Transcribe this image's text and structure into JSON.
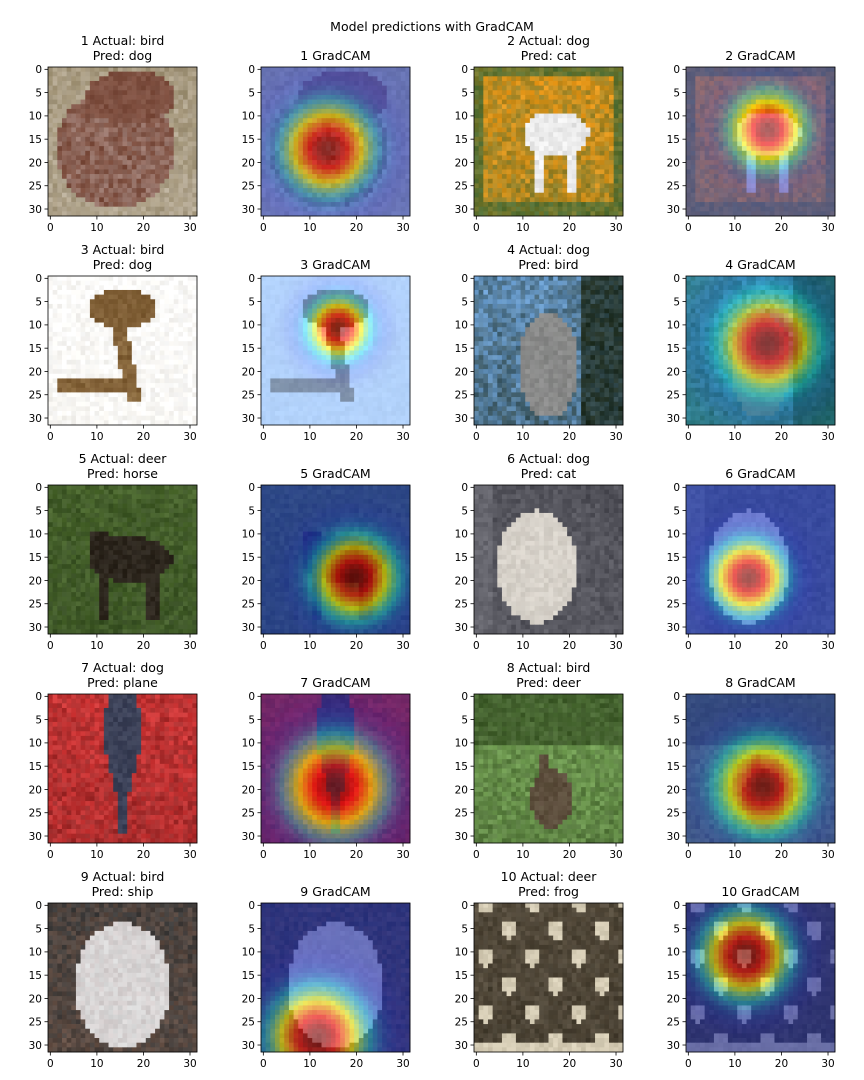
{
  "figure": {
    "title": "Model predictions with GradCAM"
  },
  "chart_data": {
    "type": "image_grid",
    "xlim": [
      0,
      31
    ],
    "ylim": [
      31,
      0
    ],
    "x_ticks": [
      "0",
      "10",
      "20",
      "30"
    ],
    "y_ticks": [
      "0",
      "5",
      "10",
      "15",
      "20",
      "25",
      "30"
    ],
    "samples": [
      {
        "idx": "1",
        "actual": "1 Actual: bird",
        "pred": "Pred: dog",
        "gradcam": "1 GradCAM",
        "image": {
          "bg": "#9a8c6e",
          "bg2": "#c9bfb0",
          "subject": "#7a4a3a",
          "accent": "#e9e9ee",
          "shape": "bird-head"
        },
        "heat": {
          "cx": 0.45,
          "cy": 0.55,
          "spread": 0.42,
          "base": "#3a58d8"
        }
      },
      {
        "idx": "2",
        "actual": "2 Actual: dog",
        "pred": "Pred: cat",
        "gradcam": "2 GradCAM",
        "image": {
          "bg": "#f29b18",
          "bg2": "#4f6d33",
          "subject": "#f2f2f2",
          "accent": "#222222",
          "shape": "framed-dog"
        },
        "heat": {
          "cx": 0.55,
          "cy": 0.42,
          "spread": 0.34,
          "base": "#5a4fb0"
        }
      },
      {
        "idx": "3",
        "actual": "3 Actual: bird",
        "pred": "Pred: dog",
        "gradcam": "3 GradCAM",
        "image": {
          "bg": "#ffffff",
          "bg2": "#f2efe8",
          "subject": "#7b5a32",
          "accent": "#e6c98a",
          "shape": "ostrich"
        },
        "heat": {
          "cx": 0.52,
          "cy": 0.35,
          "spread": 0.28,
          "base": "#7fb7ff"
        }
      },
      {
        "idx": "4",
        "actual": "4 Actual: dog",
        "pred": "Pred: bird",
        "gradcam": "4 GradCAM",
        "image": {
          "bg": "#6fa4d9",
          "bg2": "#1f2d20",
          "subject": "#8c8c8c",
          "accent": "#2f3f2a",
          "shape": "sitting-dog"
        },
        "heat": {
          "cx": 0.55,
          "cy": 0.45,
          "spread": 0.45,
          "base": "#1c8a8a"
        }
      },
      {
        "idx": "5",
        "actual": "5 Actual: deer",
        "pred": "Pred: horse",
        "gradcam": "5 GradCAM",
        "image": {
          "bg": "#4d6a2f",
          "bg2": "#2f4420",
          "subject": "#2a241c",
          "accent": "#6b5a3e",
          "shape": "deer"
        },
        "heat": {
          "cx": 0.63,
          "cy": 0.62,
          "spread": 0.38,
          "base": "#1c36c8"
        }
      },
      {
        "idx": "6",
        "actual": "6 Actual: dog",
        "pred": "Pred: cat",
        "gradcam": "6 GradCAM",
        "image": {
          "bg": "#4a4a52",
          "bg2": "#6a6a72",
          "subject": "#d9d4cc",
          "accent": "#9a8f82",
          "shape": "pug"
        },
        "heat": {
          "cx": 0.42,
          "cy": 0.62,
          "spread": 0.34,
          "base": "#2646d0"
        }
      },
      {
        "idx": "7",
        "actual": "7 Actual: dog",
        "pred": "Pred: plane",
        "gradcam": "7 GradCAM",
        "image": {
          "bg": "#d93a3a",
          "bg2": "#7a2020",
          "subject": "#3a3f55",
          "accent": "#6a7fa8",
          "shape": "topdown"
        },
        "heat": {
          "cx": 0.5,
          "cy": 0.62,
          "spread": 0.46,
          "base": "#3a1f8a"
        }
      },
      {
        "idx": "8",
        "actual": "8 Actual: bird",
        "pred": "Pred: deer",
        "gradcam": "8 GradCAM",
        "image": {
          "bg": "#7aa85a",
          "bg2": "#3e5a2a",
          "subject": "#5a4a3a",
          "accent": "#9ab87a",
          "shape": "emu"
        },
        "heat": {
          "cx": 0.52,
          "cy": 0.62,
          "spread": 0.42,
          "base": "#2a3ab8"
        }
      },
      {
        "idx": "9",
        "actual": "9 Actual: bird",
        "pred": "Pred: ship",
        "gradcam": "9 GradCAM",
        "image": {
          "bg": "#3a3a3a",
          "bg2": "#7a5a4a",
          "subject": "#dadada",
          "accent": "#8a2a2a",
          "shape": "emu-face"
        },
        "heat": {
          "cx": 0.38,
          "cy": 0.9,
          "spread": 0.45,
          "base": "#1a2aa8"
        }
      },
      {
        "idx": "10",
        "actual": "10 Actual: deer",
        "pred": "Pred: frog",
        "gradcam": "10 GradCAM",
        "image": {
          "bg": "#5a5040",
          "bg2": "#3a3428",
          "subject": "#d8cfb8",
          "accent": "#8a7a5a",
          "shape": "spotted"
        },
        "heat": {
          "cx": 0.4,
          "cy": 0.35,
          "spread": 0.4,
          "base": "#1a2a9a"
        }
      }
    ]
  }
}
